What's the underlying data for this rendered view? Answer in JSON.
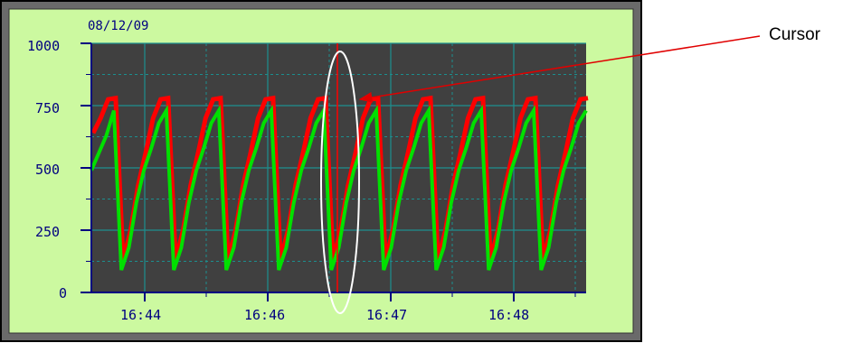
{
  "panel": {
    "date": "08/12/09",
    "colors": {
      "bezel": "#000000",
      "panel_bg": "#ccf9a0",
      "plot_bg": "#404040",
      "grid": "#1c8f8f",
      "axis": "#000080",
      "cursor": "#ff0000",
      "cursor_ellipse": "#ffffff",
      "callout_arrow": "#e00000"
    }
  },
  "annotation": {
    "cursor_label": "Cursor"
  },
  "chart_data": {
    "type": "line",
    "y_ticks": [
      "1000",
      "750",
      "500",
      "250",
      "0"
    ],
    "x_ticks": [
      "16:44",
      "16:46",
      "16:47",
      "16:48"
    ],
    "ylim": [
      0,
      1000
    ],
    "grid": true,
    "series": [
      {
        "color": "#ff0000",
        "values": [
          640,
          700,
          775,
          780,
          130,
          250,
          430,
          560,
          700,
          775,
          780,
          130,
          250,
          430,
          560,
          700,
          775,
          780,
          130,
          250,
          430,
          560,
          700,
          775,
          780,
          130,
          250,
          430,
          560,
          700,
          775,
          780,
          130,
          250,
          430,
          560,
          700,
          775,
          780,
          130,
          250,
          430,
          560,
          700,
          775,
          780,
          130,
          250,
          430,
          560,
          700,
          775,
          780,
          130,
          250,
          430,
          560,
          700,
          775,
          780,
          130,
          250,
          430,
          560,
          700,
          775,
          780
        ]
      },
      {
        "color": "#00e000",
        "values": [
          490,
          560,
          630,
          730,
          90,
          180,
          360,
          490,
          580,
          680,
          730,
          90,
          180,
          360,
          490,
          580,
          680,
          730,
          90,
          180,
          360,
          490,
          580,
          680,
          730,
          90,
          180,
          360,
          490,
          580,
          680,
          730,
          90,
          180,
          360,
          490,
          580,
          680,
          730,
          90,
          180,
          360,
          490,
          580,
          680,
          730,
          90,
          180,
          360,
          490,
          580,
          680,
          730,
          90,
          180,
          360,
          490,
          580,
          680,
          730,
          90,
          180,
          360,
          490,
          580,
          680,
          730
        ]
      }
    ]
  }
}
